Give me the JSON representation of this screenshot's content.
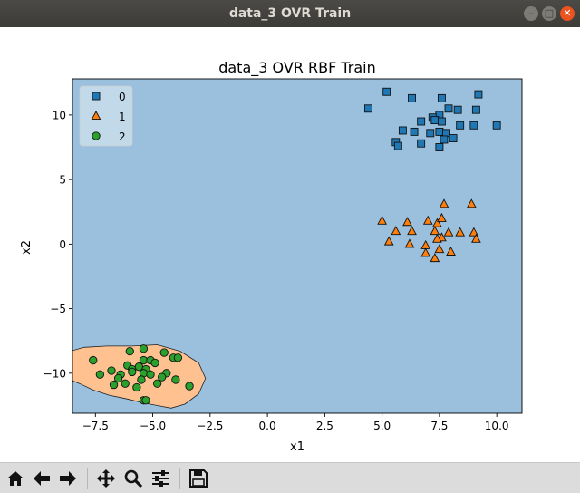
{
  "window": {
    "title": "data_3 OVR Train"
  },
  "toolbar": {
    "icons": [
      "home-icon",
      "back-arrow-icon",
      "forward-arrow-icon",
      "pan-icon",
      "zoom-icon",
      "configure-subplots-icon",
      "save-icon"
    ]
  },
  "chart_data": {
    "type": "scatter",
    "title": "data_3 OVR RBF Train",
    "xlabel": "x1",
    "ylabel": "x2",
    "xlim": [
      -8.5,
      11.1
    ],
    "ylim": [
      -13.1,
      12.8
    ],
    "xticks": [
      -7.5,
      -5.0,
      -2.5,
      0.0,
      2.5,
      5.0,
      7.5,
      10.0
    ],
    "xtick_labels": [
      "−7.5",
      "−5.0",
      "−2.5",
      "0.0",
      "2.5",
      "5.0",
      "7.5",
      "10.0"
    ],
    "yticks": [
      -10,
      -5,
      0,
      5,
      10
    ],
    "ytick_labels": [
      "−10",
      "−5",
      "0",
      "5",
      "10"
    ],
    "grid": false,
    "legend": {
      "placement": "top-left",
      "entries": [
        "0",
        "1",
        "2"
      ]
    },
    "background_region_color": "#9ac0dd",
    "region_class2_color": "#ffc190",
    "region_class2_boundary": [
      [
        -5.9,
        -7.9
      ],
      [
        -4.8,
        -7.8
      ],
      [
        -3.8,
        -8.3
      ],
      [
        -3.0,
        -9.2
      ],
      [
        -2.7,
        -10.4
      ],
      [
        -3.0,
        -11.6
      ],
      [
        -3.6,
        -12.4
      ],
      [
        -4.2,
        -12.7
      ],
      [
        -4.8,
        -12.5
      ],
      [
        -5.4,
        -12.3
      ],
      [
        -6.1,
        -12.0
      ],
      [
        -6.9,
        -11.7
      ],
      [
        -7.6,
        -11.3
      ],
      [
        -8.2,
        -10.8
      ],
      [
        -8.6,
        -10.5
      ],
      [
        -8.6,
        -8.3
      ],
      [
        -8.0,
        -8.0
      ],
      [
        -7.0,
        -7.9
      ]
    ],
    "series": [
      {
        "name": "0",
        "marker": "square",
        "color": "#1f77b4",
        "points": [
          [
            5.2,
            11.8
          ],
          [
            6.3,
            11.3
          ],
          [
            7.6,
            11.3
          ],
          [
            9.2,
            11.6
          ],
          [
            4.4,
            10.5
          ],
          [
            7.9,
            10.5
          ],
          [
            8.3,
            10.4
          ],
          [
            9.1,
            10.4
          ],
          [
            7.5,
            10.0
          ],
          [
            7.2,
            9.8
          ],
          [
            6.7,
            9.5
          ],
          [
            7.3,
            9.6
          ],
          [
            7.6,
            9.5
          ],
          [
            8.4,
            9.2
          ],
          [
            9.0,
            9.2
          ],
          [
            10.0,
            9.2
          ],
          [
            5.9,
            8.8
          ],
          [
            6.4,
            8.7
          ],
          [
            7.1,
            8.6
          ],
          [
            7.5,
            8.7
          ],
          [
            7.8,
            8.6
          ],
          [
            8.1,
            8.2
          ],
          [
            7.7,
            8.1
          ],
          [
            5.6,
            7.9
          ],
          [
            5.7,
            7.6
          ],
          [
            6.7,
            7.8
          ],
          [
            7.5,
            7.5
          ]
        ]
      },
      {
        "name": "1",
        "marker": "triangle",
        "color": "#ff7f0e",
        "points": [
          [
            7.7,
            3.1
          ],
          [
            8.9,
            3.1
          ],
          [
            5.0,
            1.8
          ],
          [
            6.1,
            1.7
          ],
          [
            7.0,
            1.8
          ],
          [
            7.4,
            1.6
          ],
          [
            7.6,
            2.0
          ],
          [
            6.3,
            1.0
          ],
          [
            5.6,
            1.0
          ],
          [
            7.3,
            1.0
          ],
          [
            7.9,
            0.9
          ],
          [
            8.4,
            0.9
          ],
          [
            9.0,
            0.9
          ],
          [
            9.1,
            0.4
          ],
          [
            7.6,
            0.5
          ],
          [
            5.3,
            0.2
          ],
          [
            6.2,
            0.0
          ],
          [
            7.4,
            0.4
          ],
          [
            6.9,
            -0.1
          ],
          [
            7.5,
            -0.4
          ],
          [
            6.9,
            -0.7
          ],
          [
            8.0,
            -0.6
          ],
          [
            7.3,
            -1.1
          ]
        ]
      },
      {
        "name": "2",
        "marker": "circle",
        "color": "#2ca02c",
        "points": [
          [
            -6.0,
            -8.3
          ],
          [
            -5.4,
            -8.1
          ],
          [
            -4.5,
            -8.4
          ],
          [
            -7.6,
            -9.0
          ],
          [
            -5.4,
            -9.0
          ],
          [
            -5.1,
            -9.0
          ],
          [
            -4.9,
            -9.2
          ],
          [
            -4.1,
            -8.8
          ],
          [
            -3.9,
            -8.8
          ],
          [
            -6.1,
            -9.4
          ],
          [
            -5.9,
            -9.7
          ],
          [
            -5.6,
            -9.5
          ],
          [
            -5.3,
            -9.7
          ],
          [
            -6.8,
            -9.8
          ],
          [
            -7.3,
            -10.1
          ],
          [
            -6.4,
            -10.1
          ],
          [
            -5.9,
            -9.9
          ],
          [
            -5.4,
            -10.0
          ],
          [
            -5.1,
            -10.1
          ],
          [
            -4.4,
            -10.0
          ],
          [
            -6.5,
            -10.4
          ],
          [
            -5.5,
            -10.5
          ],
          [
            -4.6,
            -10.3
          ],
          [
            -4.0,
            -10.5
          ],
          [
            -6.7,
            -10.9
          ],
          [
            -6.2,
            -10.8
          ],
          [
            -4.8,
            -10.8
          ],
          [
            -3.4,
            -11.0
          ],
          [
            -5.7,
            -11.1
          ],
          [
            -5.4,
            -12.1
          ],
          [
            -5.3,
            -12.1
          ]
        ]
      }
    ]
  }
}
